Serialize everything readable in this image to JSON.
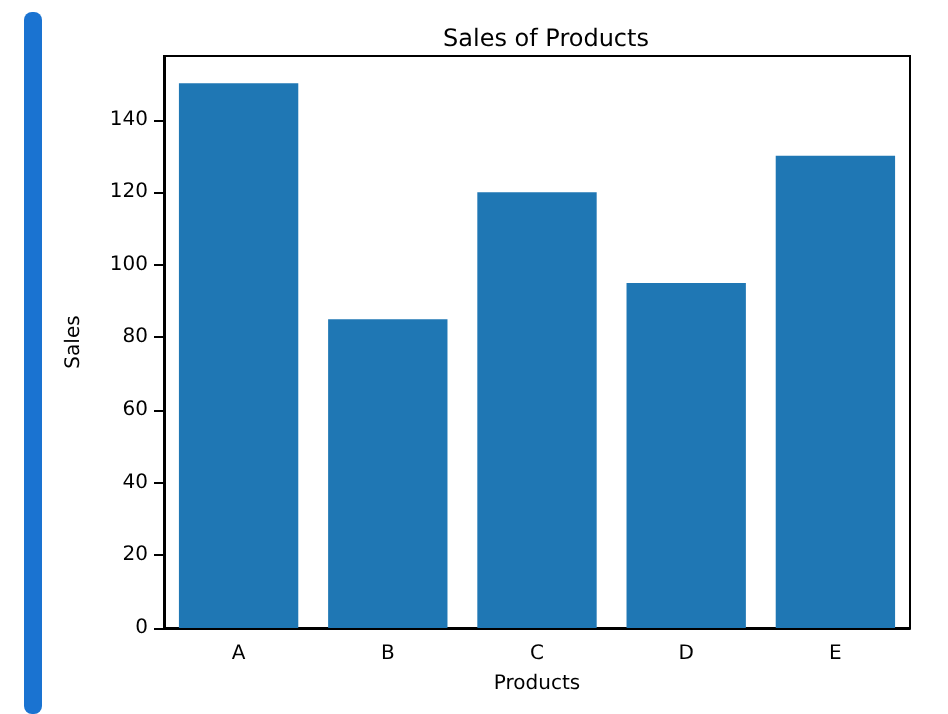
{
  "chart_data": {
    "type": "bar",
    "title": "Sales of Products",
    "xlabel": "Products",
    "ylabel": "Sales",
    "categories": [
      "A",
      "B",
      "C",
      "D",
      "E"
    ],
    "values": [
      150,
      85,
      120,
      95,
      130
    ],
    "color": "#1f77b4",
    "ylim": [
      0,
      157.5
    ],
    "yticks": [
      0,
      20,
      40,
      60,
      80,
      100,
      120,
      140
    ],
    "grid": false
  }
}
